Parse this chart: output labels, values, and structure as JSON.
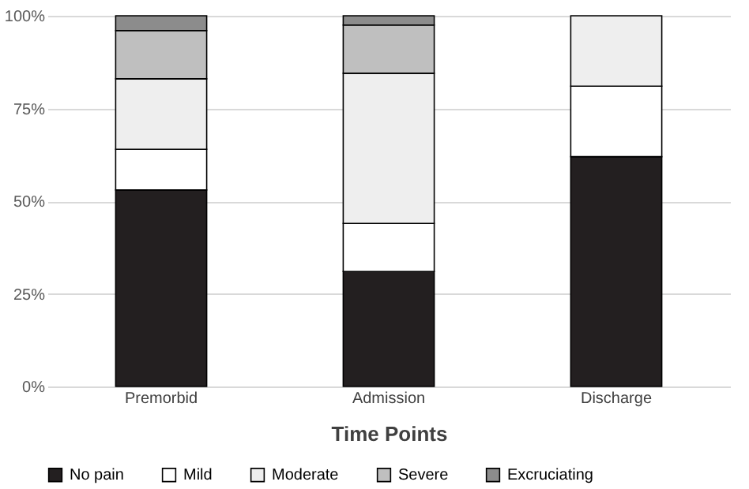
{
  "chart_data": {
    "type": "bar",
    "stacked": true,
    "xlabel": "Time Points",
    "categories": [
      "Premorbid",
      "Admission",
      "Discharge"
    ],
    "series": [
      {
        "name": "No pain",
        "color": "#231f20",
        "values": [
          53,
          31,
          62
        ]
      },
      {
        "name": "Mild",
        "color": "#ffffff",
        "values": [
          11,
          13,
          19
        ]
      },
      {
        "name": "Moderate",
        "color": "#eeeeee",
        "values": [
          19,
          40.5,
          19
        ]
      },
      {
        "name": "Severe",
        "color": "#bfbfbf",
        "values": [
          13,
          13,
          null
        ]
      },
      {
        "name": "Excruciating",
        "color": "#8c8c8c",
        "values": [
          4,
          2.5,
          null
        ]
      }
    ],
    "ylim": [
      0,
      100
    ],
    "yticks": [
      {
        "value": 0,
        "label": "0%"
      },
      {
        "value": 25,
        "label": "25%"
      },
      {
        "value": 50,
        "label": "50%"
      },
      {
        "value": 75,
        "label": "75%"
      },
      {
        "value": 100,
        "label": "100%"
      }
    ],
    "grid": "y",
    "legend": "bottom"
  }
}
